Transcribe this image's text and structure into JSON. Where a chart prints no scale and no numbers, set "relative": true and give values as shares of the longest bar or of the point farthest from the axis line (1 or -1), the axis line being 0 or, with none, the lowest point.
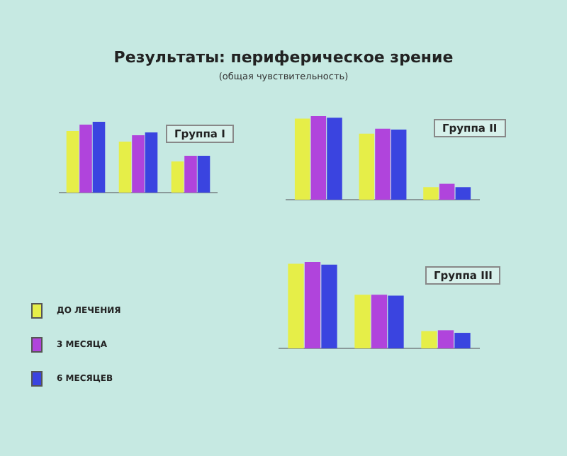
{
  "chart_data": [
    {
      "type": "bar",
      "title": "Результаты:  периферическое зрение",
      "subtitle": "(общая чувствительность)",
      "annotations": [
        "Группа I"
      ],
      "relative": true,
      "categories": [
        null,
        null,
        null
      ],
      "legend": false,
      "series": [
        {
          "color": "#e6ee48",
          "values": [
            0.87,
            0.72,
            0.44
          ]
        },
        {
          "color": "#b044dc",
          "values": [
            0.96,
            0.81,
            0.52
          ]
        },
        {
          "color": "#3a44e0",
          "values": [
            1,
            0.85,
            0.52
          ]
        }
      ]
    },
    {
      "type": "bar",
      "title": "Группа II",
      "relative": true,
      "categories": [
        null,
        null,
        null
      ],
      "legend": false,
      "series": [
        {
          "color": "#e6ee48",
          "values": [
            0.97,
            0.79,
            0.15
          ]
        },
        {
          "color": "#b044dc",
          "values": [
            1,
            0.85,
            0.19
          ]
        },
        {
          "color": "#3a44e0",
          "values": [
            0.98,
            0.84,
            0.15
          ]
        }
      ]
    },
    {
      "type": "bar",
      "title": "Группа III",
      "relative": true,
      "categories": [
        null,
        null,
        null
      ],
      "legend": "left",
      "series": [
        {
          "name": "ДО ЛЕЧЕНИЯ",
          "color": "#e6ee48",
          "values": [
            0.98,
            0.62,
            0.2
          ]
        },
        {
          "name": "3 МЕСЯЦА",
          "color": "#b044dc",
          "values": [
            1,
            0.62,
            0.21
          ]
        },
        {
          "name": "6 МЕСЯЦЕВ",
          "color": "#3a44e0",
          "values": [
            0.97,
            0.61,
            0.18
          ]
        }
      ]
    }
  ]
}
